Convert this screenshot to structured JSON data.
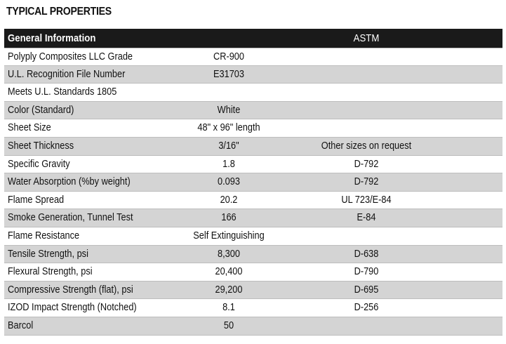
{
  "title": "TYPICAL PROPERTIES",
  "header": {
    "name": "General  Information",
    "value": "",
    "astm": "ASTM"
  },
  "rows": [
    {
      "name": "Polyply Composites LLC Grade",
      "value": "CR-900",
      "astm": ""
    },
    {
      "name": "U.L. Recognition File Number",
      "value": "E31703",
      "astm": ""
    },
    {
      "name": "Meets U.L. Standards 1805",
      "value": "",
      "astm": ""
    },
    {
      "name": "Color (Standard)",
      "value": "White",
      "astm": ""
    },
    {
      "name": "Sheet Size",
      "value": "48\" x 96\" length",
      "astm": ""
    },
    {
      "name": "Sheet Thickness",
      "value": "3/16\"",
      "astm": "Other sizes on request"
    },
    {
      "name": "Specific Gravity",
      "value": "1.8",
      "astm": "D-792"
    },
    {
      "name": "Water Absorption (%by weight)",
      "value": "0.093",
      "astm": "D-792"
    },
    {
      "name": "Flame Spread",
      "value": "20.2",
      "astm": "UL 723/E-84"
    },
    {
      "name": "Smoke Generation, Tunnel Test",
      "value": "166",
      "astm": "E-84"
    },
    {
      "name": "Flame Resistance",
      "value": "Self Extinguishing",
      "astm": ""
    },
    {
      "name": "Tensile Strength, psi",
      "value": "8,300",
      "astm": "D-638"
    },
    {
      "name": "Flexural Strength, psi",
      "value": "20,400",
      "astm": "D-790"
    },
    {
      "name": "Compressive Strength (flat), psi",
      "value": "29,200",
      "astm": "D-695"
    },
    {
      "name": "IZOD Impact Strength (Notched)",
      "value": "8.1",
      "astm": "D-256"
    },
    {
      "name": "Barcol",
      "value": "50",
      "astm": ""
    }
  ],
  "colors": {
    "header_bg": "#1a1a1a",
    "header_text": "#ffffff",
    "shaded_row": "#d4d4d4",
    "row_border": "#bdbdbd"
  }
}
